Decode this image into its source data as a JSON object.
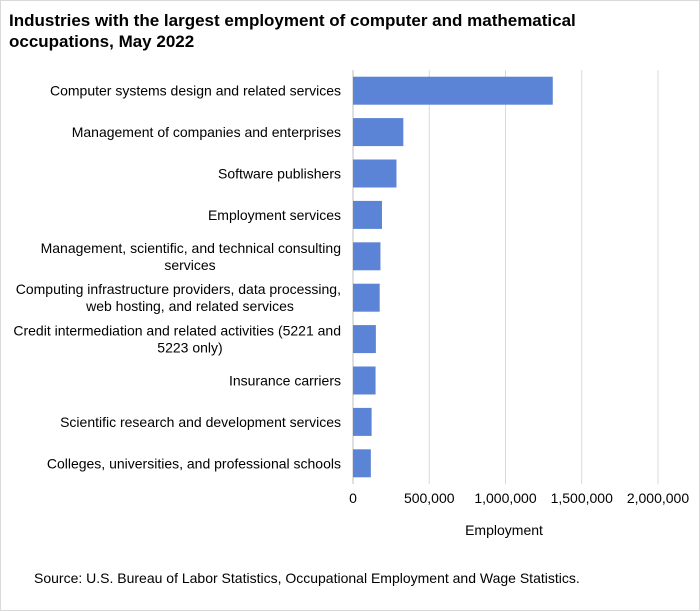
{
  "chart_data": {
    "type": "bar",
    "orientation": "horizontal",
    "title": "Industries with the largest employment  of computer and mathematical occupations, May 2022",
    "xlabel": "Employment",
    "ylabel": "",
    "xlim": [
      0,
      2000000
    ],
    "xticks": [
      0,
      500000,
      1000000,
      1500000,
      2000000
    ],
    "xtick_labels": [
      "0",
      "500,000",
      "1,000,000",
      "1,500,000",
      "2,000,000"
    ],
    "grid": true,
    "bar_color": "#5b84d6",
    "categories": [
      "Computer systems design and related services",
      "Management of companies and enterprises",
      "Software publishers",
      "Employment services",
      "Management, scientific, and technical consulting services",
      "Computing infrastructure providers, data processing, web hosting, and related services",
      "Credit intermediation and related activities (5221 and 5223 only)",
      "Insurance carriers",
      "Scientific research and development services",
      "Colleges, universities, and professional schools"
    ],
    "category_lines": [
      [
        "Computer systems design and related services"
      ],
      [
        "Management of companies and enterprises"
      ],
      [
        "Software publishers"
      ],
      [
        "Employment services"
      ],
      [
        "Management, scientific, and technical consulting",
        "services"
      ],
      [
        "Computing infrastructure providers, data processing,",
        "web hosting, and related services"
      ],
      [
        "Credit intermediation and related activities (5221 and",
        "5223 only)"
      ],
      [
        "Insurance carriers"
      ],
      [
        "Scientific research and development services"
      ],
      [
        "Colleges, universities, and professional schools"
      ]
    ],
    "values": [
      1310000,
      330000,
      285000,
      190000,
      180000,
      175000,
      150000,
      148000,
      122000,
      117000
    ]
  },
  "source": "Source: U.S. Bureau of Labor Statistics, Occupational Employment  and Wage Statistics."
}
